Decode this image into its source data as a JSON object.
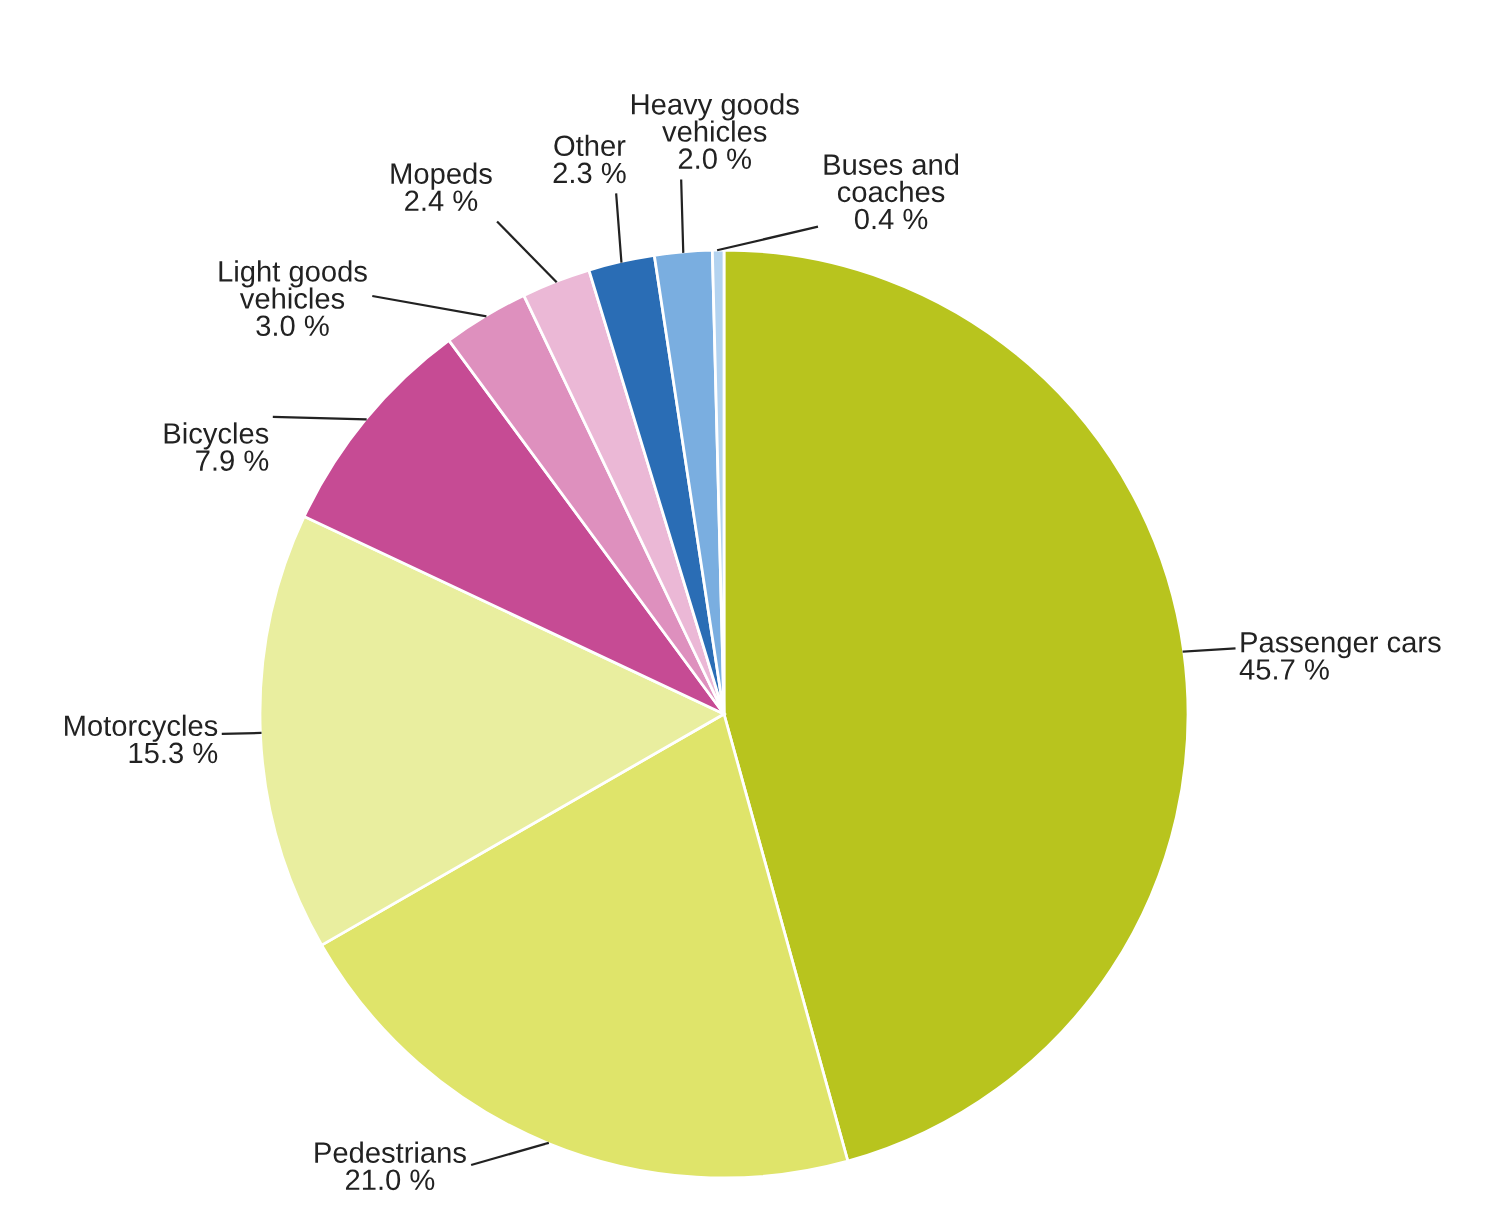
{
  "chart_data": {
    "type": "pie",
    "categories": [
      "Passenger cars",
      "Pedestrians",
      "Motorcycles",
      "Bicycles",
      "Light goods\nvehicles",
      "Mopeds",
      "Other",
      "Heavy goods\nvehicles",
      "Buses and\ncoaches"
    ],
    "values": [
      45.7,
      21.0,
      15.3,
      7.9,
      3.0,
      2.4,
      2.3,
      2.0,
      0.4
    ],
    "value_labels": [
      "45.7 %",
      "21.0 %",
      "15.3 %",
      "7.9 %",
      "3.0 %",
      "2.4 %",
      "2.3 %",
      "2.0 %",
      "0.4 %"
    ],
    "colors": [
      "#b8c41e",
      "#dfe46a",
      "#e9ee9f",
      "#c64b94",
      "#de90be",
      "#ebb8d6",
      "#2a6db5",
      "#7aaee0",
      "#b3d3f0"
    ],
    "legend": false
  }
}
